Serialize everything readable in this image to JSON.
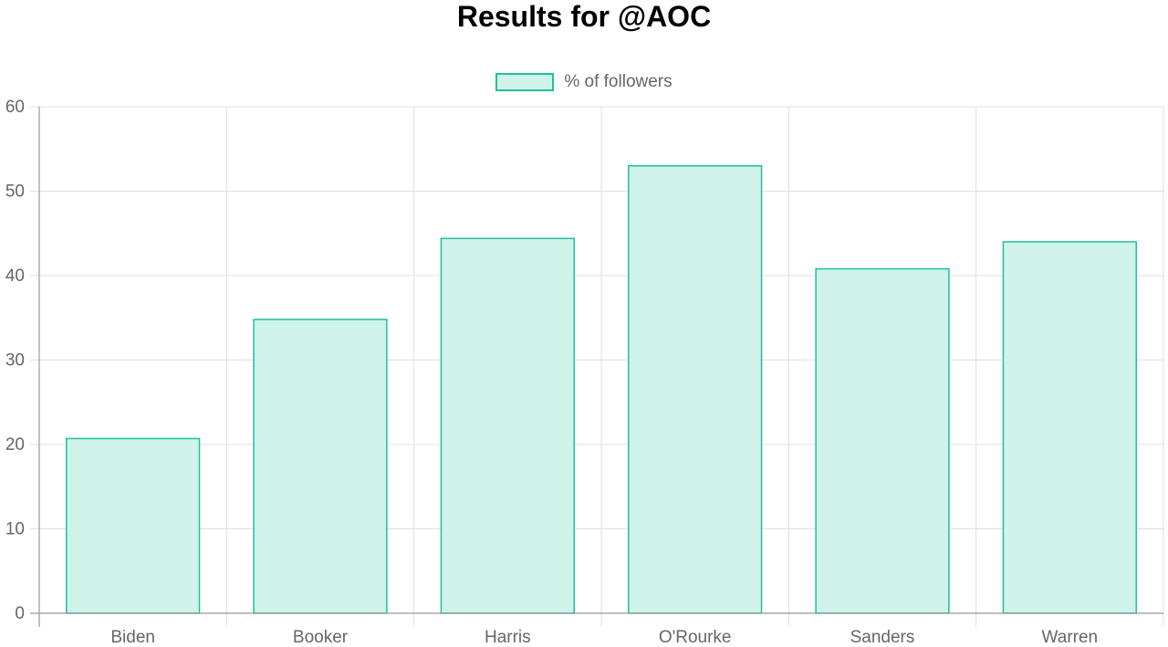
{
  "chart_data": {
    "type": "bar",
    "title": "Results for @AOC",
    "categories": [
      "Biden",
      "Booker",
      "Harris",
      "O'Rourke",
      "Sanders",
      "Warren"
    ],
    "series": [
      {
        "name": "% of followers",
        "values": [
          20.7,
          34.8,
          44.4,
          53.0,
          40.8,
          44.0
        ]
      }
    ],
    "ylim": [
      0,
      60
    ],
    "yticks": [
      "0",
      "10",
      "20",
      "30",
      "40",
      "50",
      "60"
    ],
    "grid": true,
    "legend_position": "top-center",
    "colors": {
      "bar_fill": "#cff3ea",
      "bar_stroke": "#20bfa0",
      "grid": "#e0e0e0",
      "axis": "#999999"
    }
  }
}
